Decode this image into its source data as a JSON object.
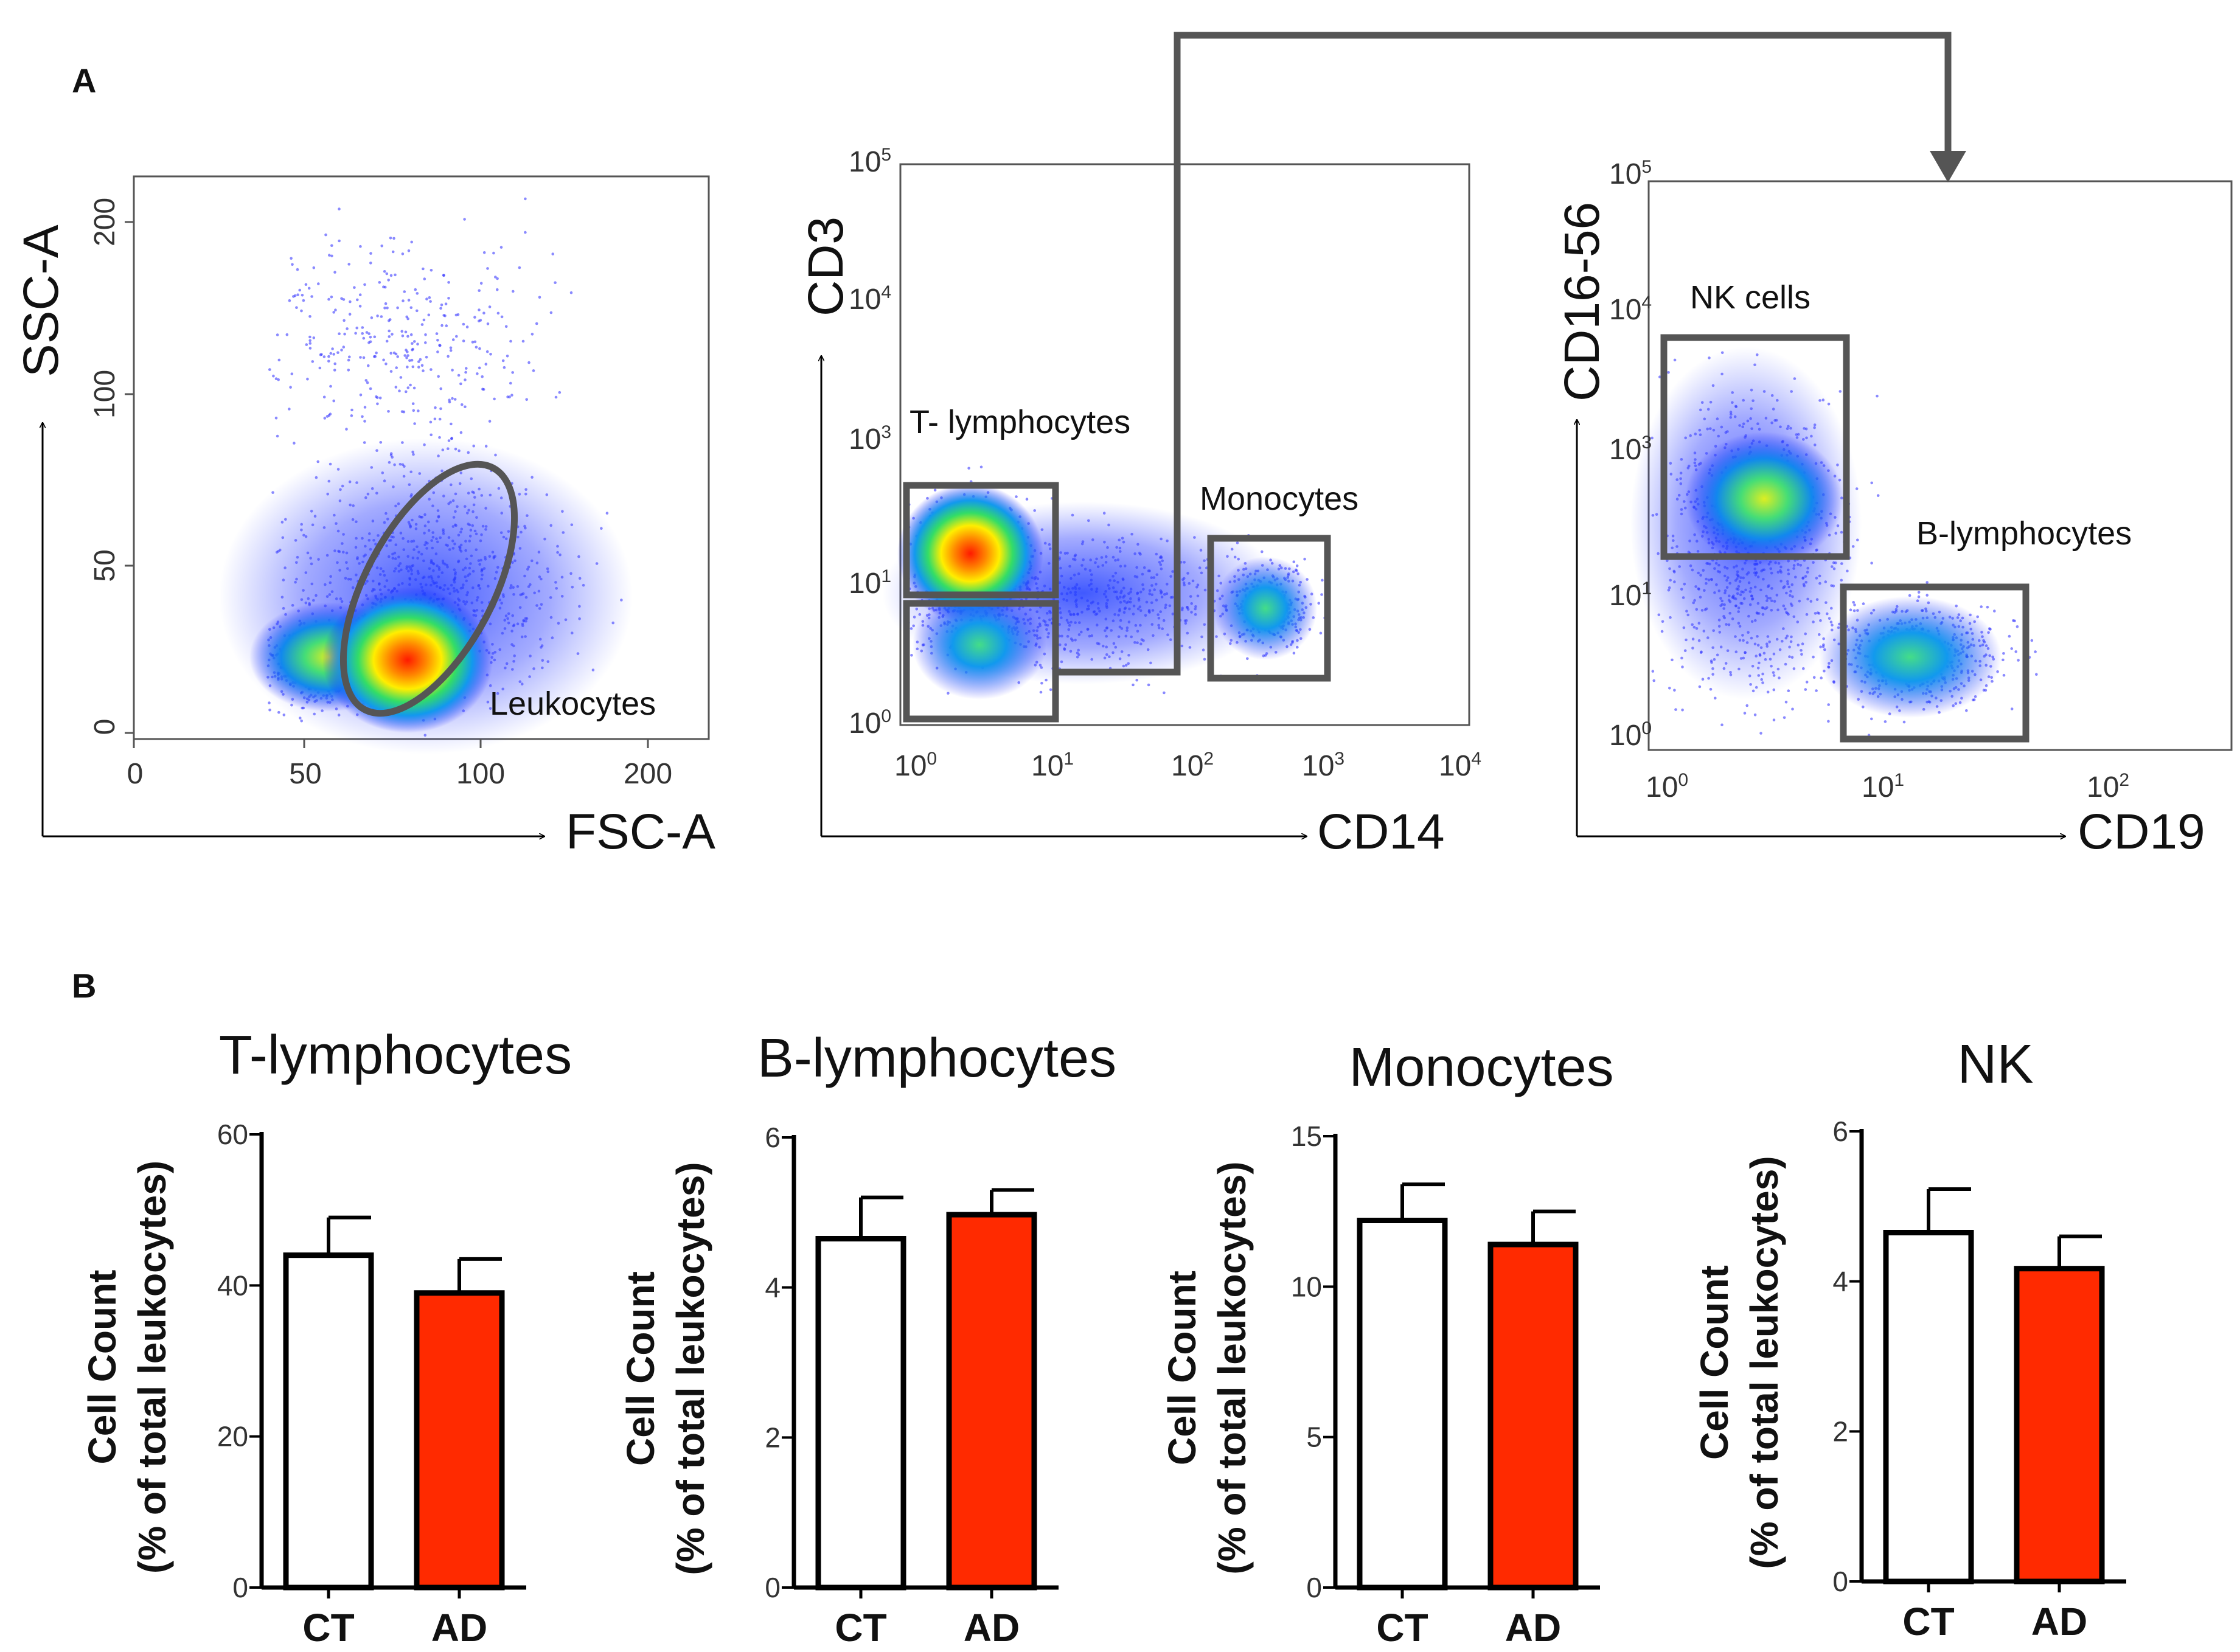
{
  "panel_a_label": "A",
  "panel_b_label": "B",
  "colors": {
    "ct": "#ffffff",
    "ad": "#ff2a00",
    "gate": "#555555",
    "axis": "#000000",
    "density_low": "#1a1aff",
    "density_high": "#ff2200"
  },
  "chart_data": [
    {
      "type": "scatter",
      "id": "plot1",
      "x_label": "FSC-A",
      "y_label": "SSC-A",
      "x_ticks": [
        "0",
        "50",
        "100",
        "200"
      ],
      "y_ticks": [
        "0",
        "50",
        "100",
        "200"
      ],
      "gates": [
        {
          "name": "Leukocytes",
          "shape": "ellipse"
        }
      ]
    },
    {
      "type": "scatter",
      "id": "plot2",
      "x_label": "CD14",
      "y_label": "CD3",
      "x_ticks": [
        {
          "base": "10",
          "exp": "0"
        },
        {
          "base": "10",
          "exp": "1"
        },
        {
          "base": "10",
          "exp": "2"
        },
        {
          "base": "10",
          "exp": "3"
        },
        {
          "base": "10",
          "exp": "4"
        }
      ],
      "y_ticks": [
        {
          "base": "10",
          "exp": "0"
        },
        {
          "base": "10",
          "exp": "1"
        },
        {
          "base": "10",
          "exp": "3"
        },
        {
          "base": "10",
          "exp": "4"
        },
        {
          "base": "10",
          "exp": "5"
        }
      ],
      "gates": [
        {
          "name": "T- lymphocytes"
        },
        {
          "name": "Monocytes"
        }
      ]
    },
    {
      "type": "scatter",
      "id": "plot3",
      "x_label": "CD19",
      "y_label": "CD16-56",
      "x_ticks": [
        {
          "base": "10",
          "exp": "0"
        },
        {
          "base": "10",
          "exp": "1"
        },
        {
          "base": "10",
          "exp": "2"
        }
      ],
      "y_ticks": [
        {
          "base": "10",
          "exp": "0"
        },
        {
          "base": "10",
          "exp": "1"
        },
        {
          "base": "10",
          "exp": "3"
        },
        {
          "base": "10",
          "exp": "4"
        },
        {
          "base": "10",
          "exp": "5"
        }
      ],
      "gates": [
        {
          "name": "NK cells"
        },
        {
          "name": "B-lymphocytes"
        }
      ]
    },
    {
      "type": "bar",
      "id": "bar-t",
      "title": "T-lymphocytes",
      "ylabel_line1": "Cell Count",
      "ylabel_line2": "(% of total leukocytes)",
      "categories": [
        "CT",
        "AD"
      ],
      "values": [
        44,
        39
      ],
      "errors": [
        5,
        4.5
      ],
      "ylim": [
        0,
        60
      ],
      "yticks": [
        0,
        20,
        40,
        60
      ]
    },
    {
      "type": "bar",
      "id": "bar-b",
      "title": "B-lymphocytes",
      "ylabel_line1": "Cell Count",
      "ylabel_line2": "(% of total leukocytes)",
      "categories": [
        "CT",
        "AD"
      ],
      "values": [
        4.65,
        4.97
      ],
      "errors": [
        0.55,
        0.33
      ],
      "ylim": [
        0,
        6
      ],
      "yticks": [
        0,
        2,
        4,
        6
      ]
    },
    {
      "type": "bar",
      "id": "bar-m",
      "title": "Monocytes",
      "ylabel_line1": "Cell Count",
      "ylabel_line2": "(% of total leukocytes)",
      "categories": [
        "CT",
        "AD"
      ],
      "values": [
        12.2,
        11.4
      ],
      "errors": [
        1.2,
        1.1
      ],
      "ylim": [
        0,
        15
      ],
      "yticks": [
        0,
        5,
        10,
        15
      ]
    },
    {
      "type": "bar",
      "id": "bar-nk",
      "title": "NK",
      "ylabel_line1": "Cell Count",
      "ylabel_line2": "(% of total leukocytes)",
      "categories": [
        "CT",
        "AD"
      ],
      "values": [
        4.65,
        4.17
      ],
      "errors": [
        0.58,
        0.43
      ],
      "ylim": [
        0,
        6
      ],
      "yticks": [
        0,
        2,
        4,
        6
      ]
    }
  ]
}
